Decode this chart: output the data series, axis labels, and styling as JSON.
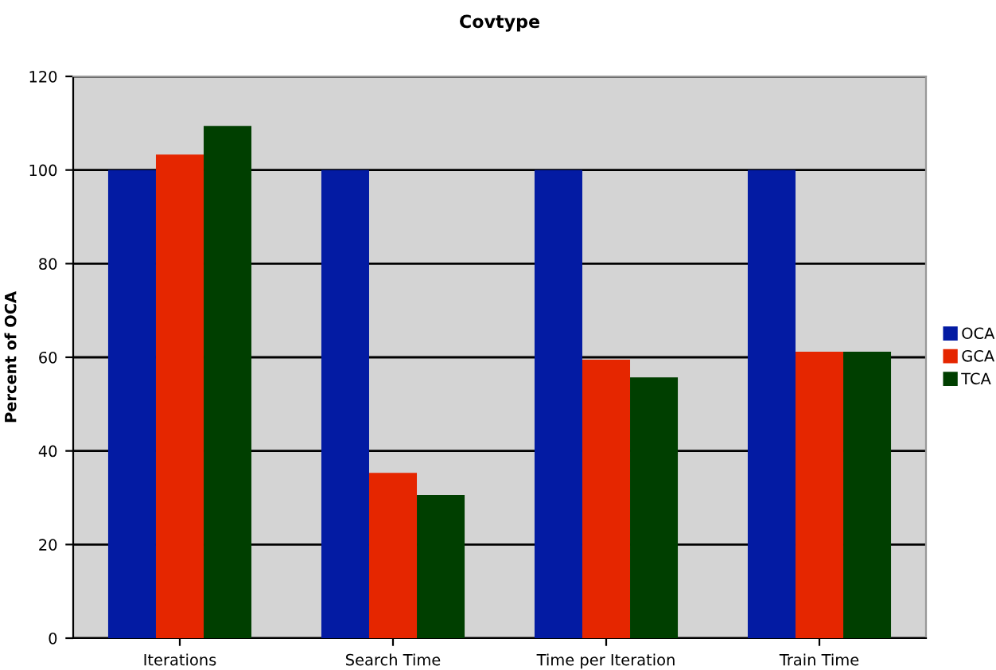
{
  "chart_data": {
    "type": "bar",
    "title": "Covtype",
    "ylabel": "Percent of OCA",
    "categories": [
      "Iterations",
      "Search Time",
      "Time per Iteration",
      "Train Time"
    ],
    "series": [
      {
        "name": "OCA",
        "color": "#031ba3",
        "values": [
          100,
          100,
          100,
          100
        ]
      },
      {
        "name": "GCA",
        "color": "#e52600",
        "values": [
          103.3,
          35.3,
          59.5,
          61.2
        ]
      },
      {
        "name": "TCA",
        "color": "#003f00",
        "values": [
          109.4,
          30.6,
          55.7,
          61.2
        ]
      }
    ],
    "ylim": [
      0,
      120
    ],
    "yticks": [
      0,
      20,
      40,
      60,
      80,
      100,
      120
    ],
    "grid": "y",
    "legend": "right"
  }
}
